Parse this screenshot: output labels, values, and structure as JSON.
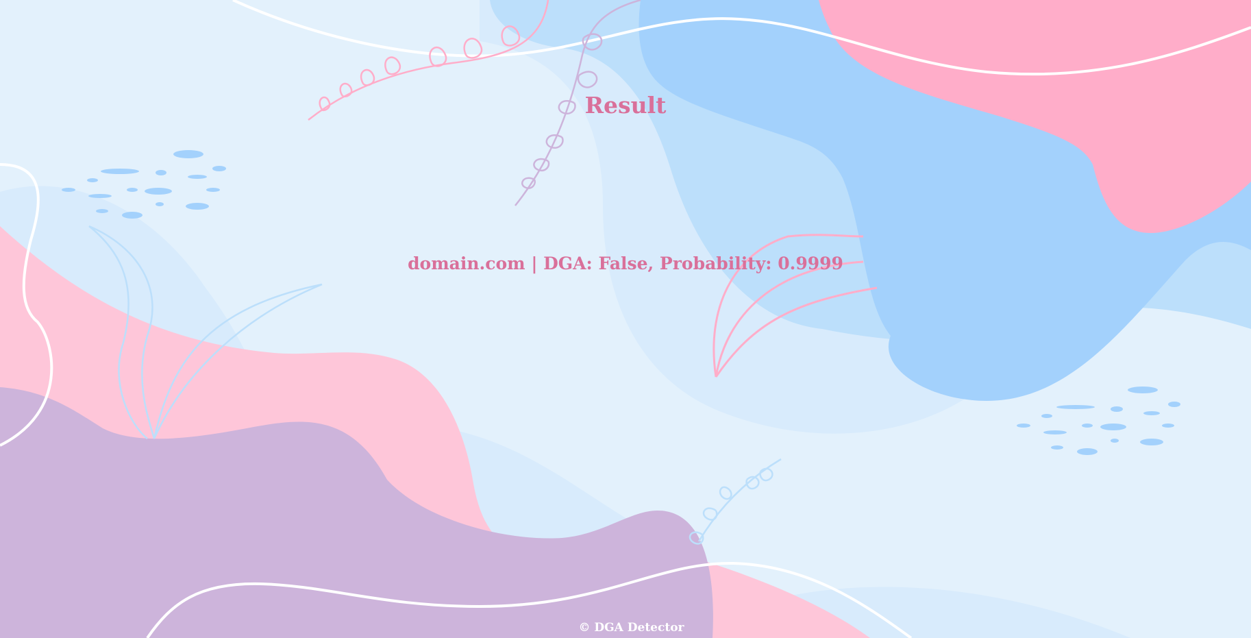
{
  "page": {
    "title": "Result",
    "result_text": "domain.com | DGA: False, Probability: 0.9999",
    "footer": "© DGA Detector"
  },
  "colors": {
    "background": "#e3f1fc",
    "accent_text": "#d9709a",
    "pink": "#fec6d9",
    "hot_pink": "#ffadc9",
    "blue": "#a3d1fc",
    "light_blue": "#bcdffb",
    "pale_blue": "#d8ebfc",
    "lavender": "#cdb4db",
    "footer_text": "#ffffff"
  }
}
